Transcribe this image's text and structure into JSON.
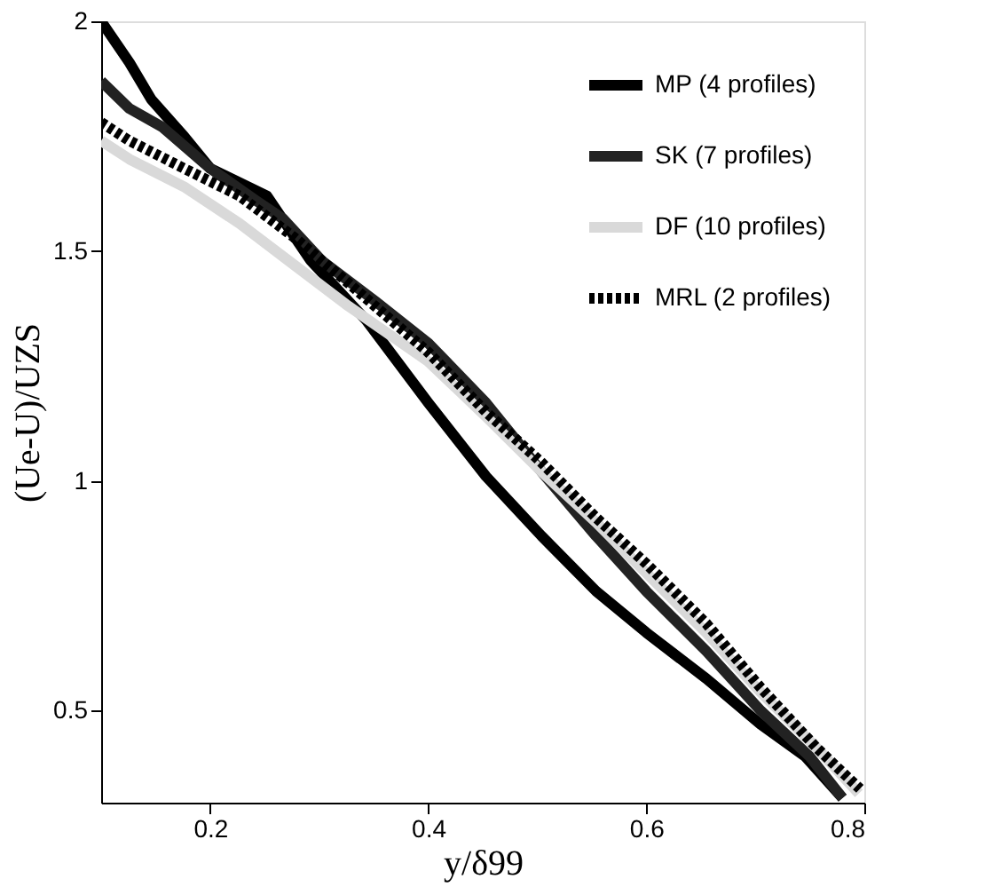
{
  "chart_data": {
    "type": "line",
    "xlabel": "y/δ99",
    "ylabel": "(Ue-U)/UZS",
    "xlim": [
      0.1,
      0.8
    ],
    "xticks": [
      0.2,
      0.4,
      0.6,
      0.8
    ],
    "ylim": [
      0.3,
      2
    ],
    "yticks": [
      0.5,
      1,
      1.5,
      2
    ],
    "grid": false,
    "legend": "top right",
    "marker": "none",
    "series": [
      {
        "name": "MP (4 profiles)",
        "color": "#000000",
        "line_style": "solid",
        "x": [
          0.1,
          0.126,
          0.146,
          0.176,
          0.2,
          0.252,
          0.292,
          0.343,
          0.4,
          0.453,
          0.504,
          0.554,
          0.6,
          0.655,
          0.705,
          0.746,
          0.78
        ],
        "values": [
          2.0,
          1.91,
          1.83,
          1.75,
          1.68,
          1.62,
          1.48,
          1.35,
          1.17,
          1.01,
          0.88,
          0.76,
          0.67,
          0.57,
          0.47,
          0.4,
          0.31
        ]
      },
      {
        "name": "SK (7 profiles)",
        "color": "#222222",
        "line_style": "solid",
        "x": [
          0.1,
          0.126,
          0.156,
          0.2,
          0.242,
          0.267,
          0.302,
          0.352,
          0.4,
          0.453,
          0.504,
          0.554,
          0.6,
          0.655,
          0.705,
          0.75,
          0.78
        ],
        "values": [
          1.87,
          1.81,
          1.77,
          1.68,
          1.61,
          1.57,
          1.48,
          1.39,
          1.3,
          1.17,
          1.02,
          0.88,
          0.76,
          0.63,
          0.5,
          0.4,
          0.31
        ]
      },
      {
        "name": "DF (10 profiles)",
        "color": "#d9d9d9",
        "line_style": "solid",
        "x": [
          0.1,
          0.126,
          0.176,
          0.227,
          0.277,
          0.327,
          0.4,
          0.453,
          0.504,
          0.554,
          0.6,
          0.655,
          0.705,
          0.756,
          0.795
        ],
        "values": [
          1.74,
          1.7,
          1.64,
          1.56,
          1.47,
          1.38,
          1.26,
          1.14,
          1.02,
          0.91,
          0.8,
          0.67,
          0.54,
          0.42,
          0.32
        ]
      },
      {
        "name": "MRL (2 profiles)",
        "color": "#000000",
        "line_style": "dotted",
        "x": [
          0.1,
          0.126,
          0.176,
          0.227,
          0.277,
          0.327,
          0.4,
          0.453,
          0.504,
          0.554,
          0.6,
          0.655,
          0.705,
          0.756,
          0.796
        ],
        "values": [
          1.78,
          1.74,
          1.68,
          1.62,
          1.53,
          1.43,
          1.28,
          1.15,
          1.04,
          0.92,
          0.82,
          0.69,
          0.55,
          0.42,
          0.33
        ]
      }
    ]
  }
}
